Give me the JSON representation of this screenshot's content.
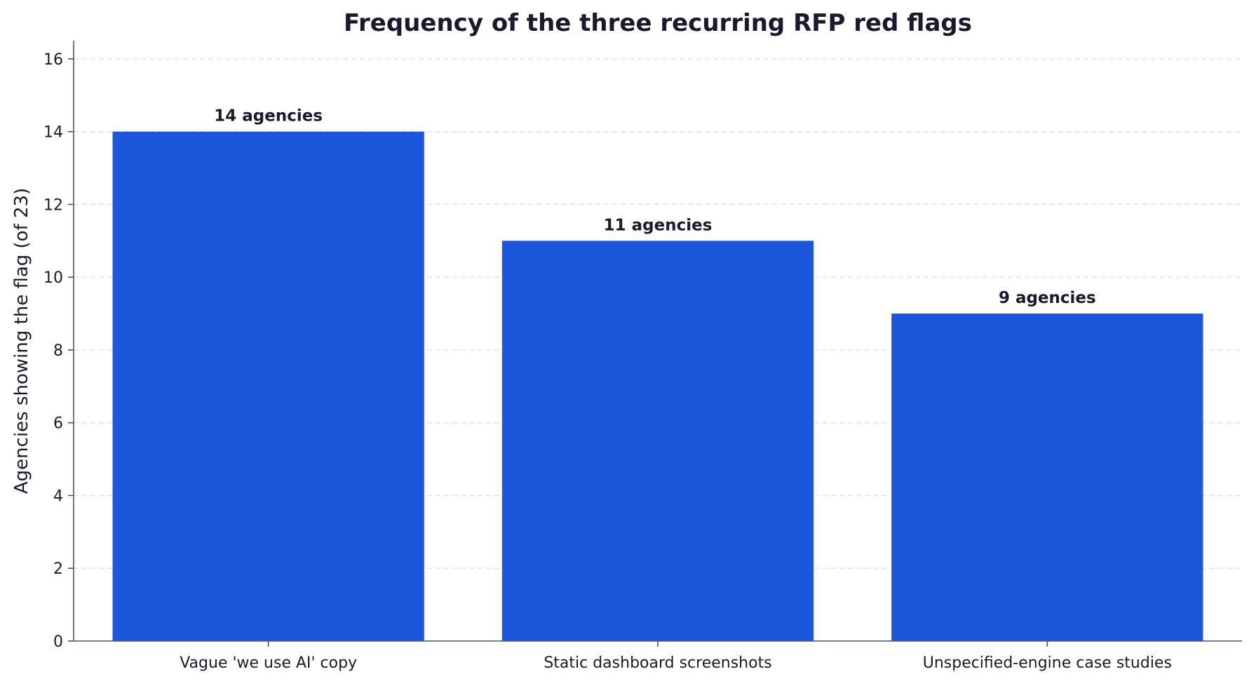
{
  "chart_data": {
    "type": "bar",
    "title": "Frequency of the three recurring RFP red flags",
    "xlabel": "",
    "ylabel": "Agencies showing the flag (of 23)",
    "categories": [
      "Vague 'we use AI' copy",
      "Static dashboard screenshots",
      "Unspecified-engine case studies"
    ],
    "values": [
      14,
      11,
      9
    ],
    "value_labels": [
      "14 agencies",
      "11 agencies",
      "9 agencies"
    ],
    "ylim": [
      0,
      16.5
    ],
    "yticks": [
      0,
      2,
      4,
      6,
      8,
      10,
      12,
      14,
      16
    ],
    "grid": "y-dashed",
    "bar_color": "#1b56db",
    "text_color": "#1a1a2e",
    "axis_color": "#4a5563"
  }
}
